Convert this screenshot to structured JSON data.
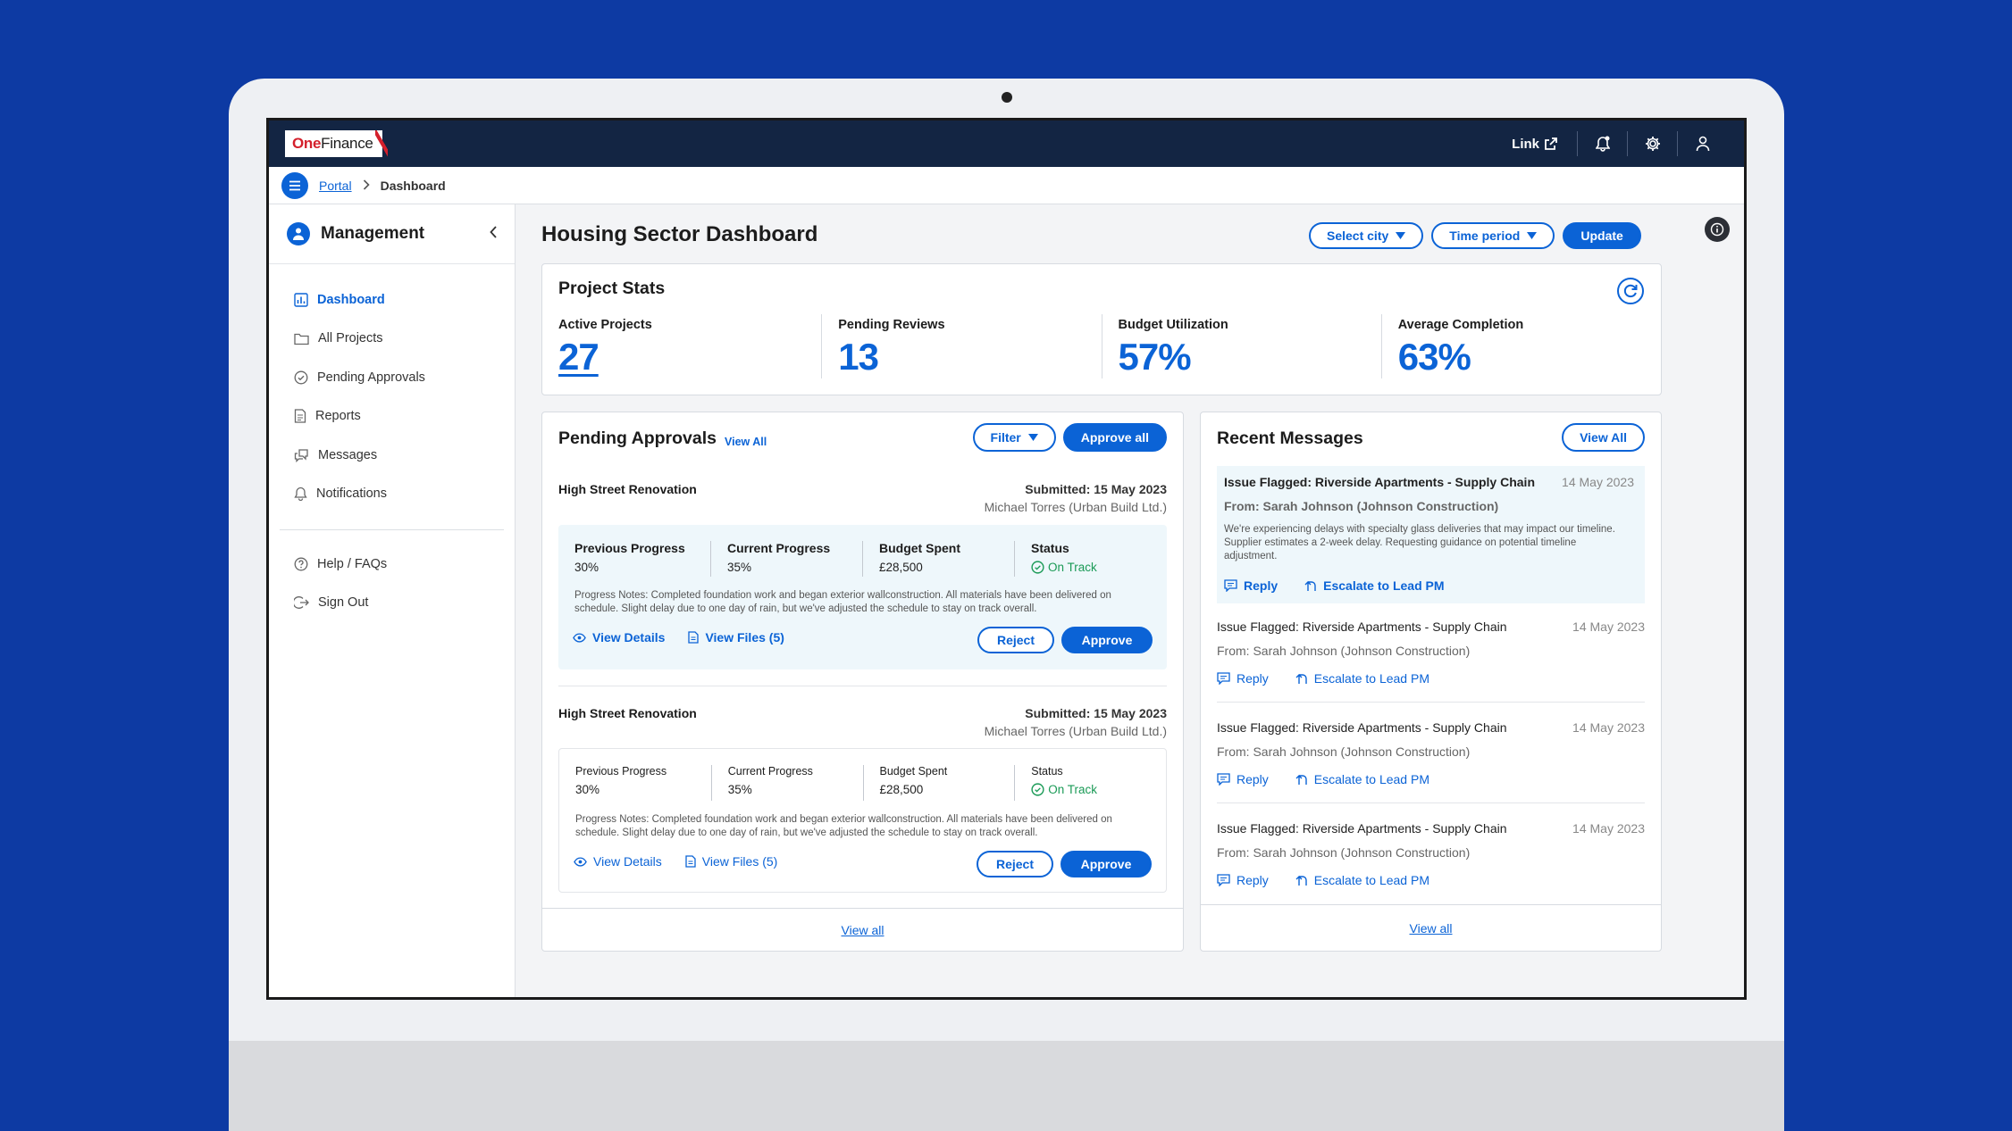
{
  "header": {
    "logo_one": "One",
    "logo_finance": "Finance",
    "link_label": "Link"
  },
  "breadcrumb": {
    "portal": "Portal",
    "current": "Dashboard"
  },
  "sidebar": {
    "title": "Management",
    "items": [
      {
        "label": "Dashboard",
        "icon": "chart-icon"
      },
      {
        "label": "All Projects",
        "icon": "folder-icon"
      },
      {
        "label": "Pending Approvals",
        "icon": "check-circle-icon"
      },
      {
        "label": "Reports",
        "icon": "document-icon"
      },
      {
        "label": "Messages",
        "icon": "chat-icon"
      },
      {
        "label": "Notifications",
        "icon": "bell-icon"
      }
    ],
    "footer_items": [
      {
        "label": "Help / FAQs",
        "icon": "help-icon"
      },
      {
        "label": "Sign Out",
        "icon": "sign-out-icon"
      }
    ]
  },
  "main": {
    "title": "Housing Sector Dashboard",
    "select_city": "Select city",
    "time_period": "Time period",
    "update": "Update"
  },
  "stats": {
    "title": "Project Stats",
    "items": [
      {
        "label": "Active Projects",
        "value": "27"
      },
      {
        "label": "Pending Reviews",
        "value": "13"
      },
      {
        "label": "Budget Utilization",
        "value": "57%"
      },
      {
        "label": "Average Completion",
        "value": "63%"
      }
    ]
  },
  "approvals": {
    "title": "Pending Approvals",
    "view_all_small": "View All",
    "filter": "Filter",
    "approve_all": "Approve all",
    "items": [
      {
        "name": "High Street Renovation",
        "submitted": "Submitted: 15 May 2023",
        "by": "Michael Torres (Urban Build Ltd.)",
        "prev_label": "Previous Progress",
        "prev_value": "30%",
        "curr_label": "Current Progress",
        "curr_value": "35%",
        "budget_label": "Budget Spent",
        "budget_value": "£28,500",
        "status_label": "Status",
        "status_value": "On Track",
        "notes": "Progress Notes: Completed foundation work and began exterior wallconstruction. All materials have been delivered on schedule. Slight delay due to one day of rain, but we've adjusted the schedule to stay on track overall.",
        "view_details": "View Details",
        "view_files": "View Files (5)",
        "reject": "Reject",
        "approve": "Approve"
      },
      {
        "name": "High Street Renovation",
        "submitted": "Submitted: 15 May 2023",
        "by": "Michael Torres (Urban Build Ltd.)",
        "prev_label": "Previous Progress",
        "prev_value": "30%",
        "curr_label": "Current Progress",
        "curr_value": "35%",
        "budget_label": "Budget Spent",
        "budget_value": "£28,500",
        "status_label": "Status",
        "status_value": "On Track",
        "notes": "Progress Notes: Completed foundation work and began exterior wallconstruction. All materials have been delivered on schedule. Slight delay due to one day of rain, but we've adjusted the schedule to stay on track overall.",
        "view_details": "View Details",
        "view_files": "View Files (5)",
        "reject": "Reject",
        "approve": "Approve"
      }
    ],
    "footer": "View all"
  },
  "messages": {
    "title": "Recent Messages",
    "view_all": "View All",
    "items": [
      {
        "title": "Issue Flagged: Riverside Apartments - Supply Chain",
        "date": "14 May 2023",
        "from": "From: Sarah Johnson (Johnson Construction)",
        "body": "We're experiencing delays with specialty glass deliveries that may impact our timeline. Supplier estimates a 2-week delay. Requesting guidance on potential timeline adjustment.",
        "reply": "Reply",
        "escalate": "Escalate to Lead PM"
      },
      {
        "title": "Issue Flagged: Riverside Apartments - Supply Chain",
        "date": "14 May 2023",
        "from": "From: Sarah Johnson (Johnson Construction)",
        "reply": "Reply",
        "escalate": "Escalate to Lead PM"
      },
      {
        "title": "Issue Flagged: Riverside Apartments - Supply Chain",
        "date": "14 May 2023",
        "from": "From: Sarah Johnson (Johnson Construction)",
        "reply": "Reply",
        "escalate": "Escalate to Lead PM"
      },
      {
        "title": "Issue Flagged: Riverside Apartments - Supply Chain",
        "date": "14 May 2023",
        "from": "From: Sarah Johnson (Johnson Construction)",
        "reply": "Reply",
        "escalate": "Escalate to Lead PM"
      }
    ],
    "footer": "View all"
  },
  "colors": {
    "primary": "#0b63d6",
    "header_bg": "#132543",
    "page_bg": "#0d3aa3",
    "success": "#1a9a56",
    "brand_red": "#d4202c"
  }
}
